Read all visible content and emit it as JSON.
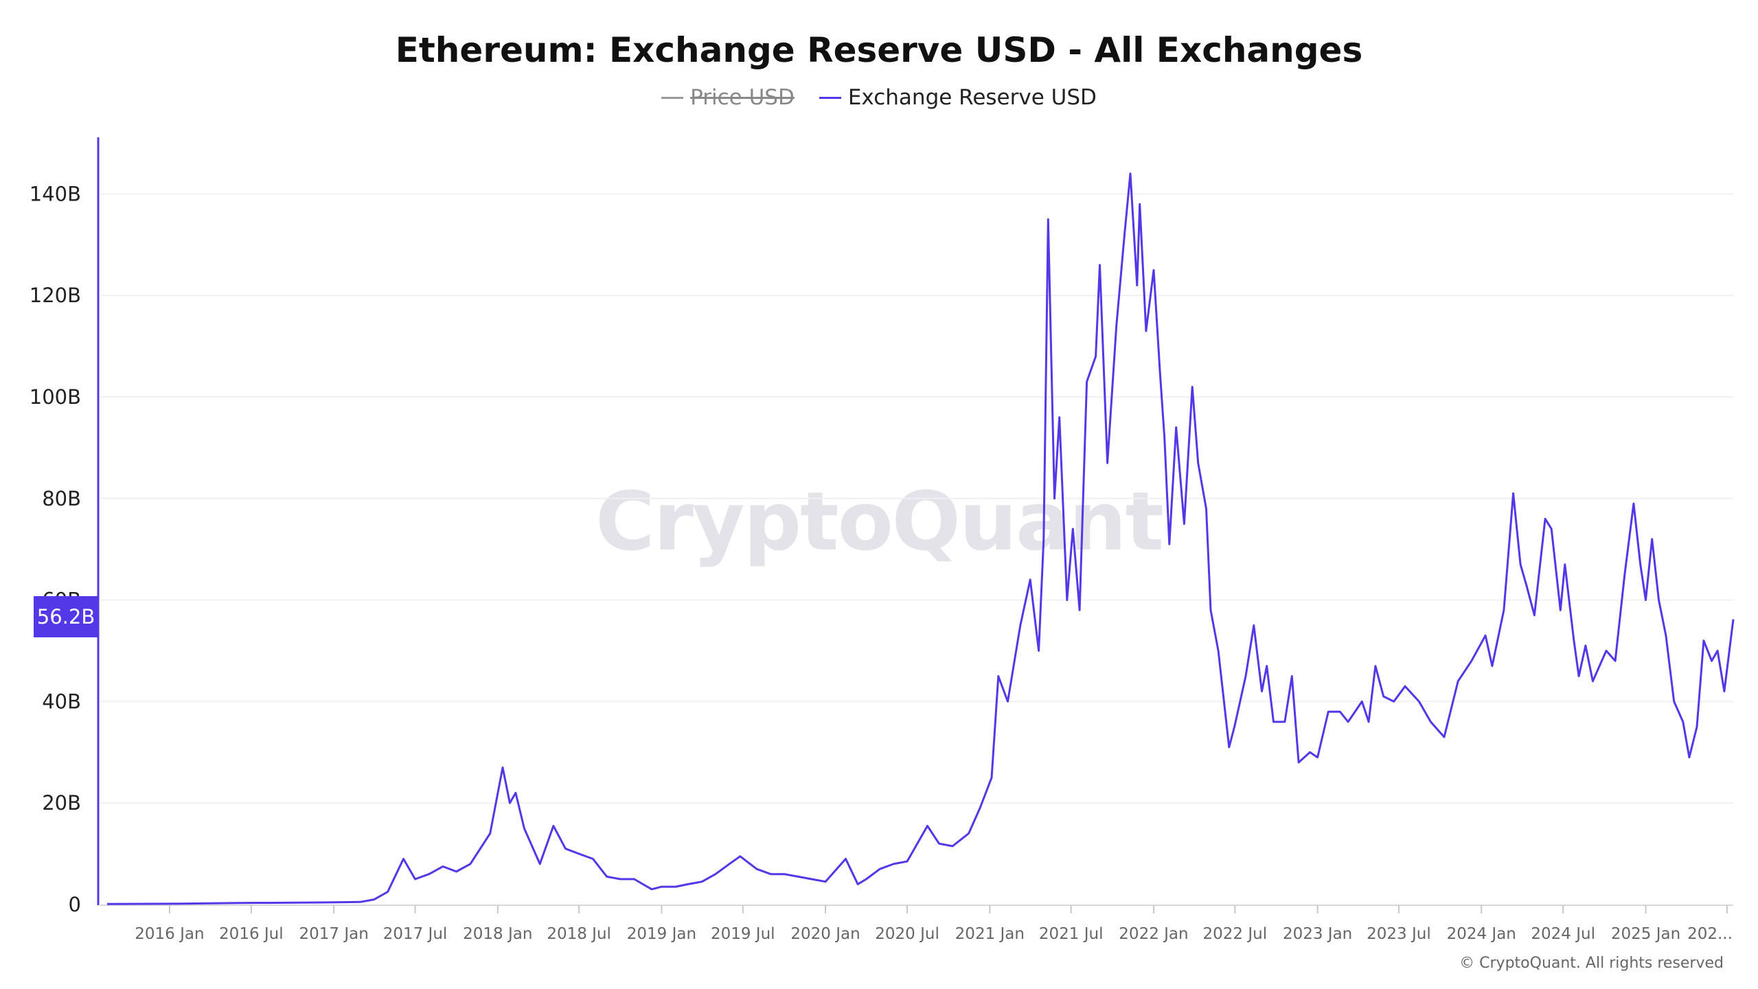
{
  "chart_data": {
    "type": "line",
    "title": "Ethereum: Exchange Reserve USD - All Exchanges",
    "legend": [
      {
        "name": "Price USD",
        "color": "#999999",
        "hidden": true
      },
      {
        "name": "Exchange Reserve USD",
        "color": "#5338e8",
        "hidden": false
      }
    ],
    "legend_placement": "top-center",
    "ylim": [
      0,
      150
    ],
    "y_unit": "B",
    "y_ticks": [
      "0",
      "20B",
      "40B",
      "60B",
      "80B",
      "100B",
      "120B",
      "140B"
    ],
    "x_ticks": [
      "2016 Jan",
      "2016 Jul",
      "2017 Jan",
      "2017 Jul",
      "2018 Jan",
      "2018 Jul",
      "2019 Jan",
      "2019 Jul",
      "2020 Jan",
      "2020 Jul",
      "2021 Jan",
      "2021 Jul",
      "2022 Jan",
      "2022 Jul",
      "2023 Jan",
      "2023 Jul",
      "2024 Jan",
      "2024 Jul",
      "2025 Jan",
      "202..."
    ],
    "x_tick_dates": [
      "2016-01-01",
      "2016-07-01",
      "2017-01-01",
      "2017-07-01",
      "2018-01-01",
      "2018-07-01",
      "2019-01-01",
      "2019-07-01",
      "2020-01-01",
      "2020-07-01",
      "2021-01-01",
      "2021-07-01",
      "2022-01-01",
      "2022-07-01",
      "2023-01-01",
      "2023-07-01",
      "2024-01-01",
      "2024-07-01",
      "2025-01-01",
      "2025-07-01"
    ],
    "grid": true,
    "last_value_label": "56.2B",
    "series": [
      {
        "name": "Exchange Reserve USD",
        "unit": "B USD",
        "points": [
          [
            "2015-08-15",
            0.1
          ],
          [
            "2016-01-01",
            0.15
          ],
          [
            "2016-06-01",
            0.3
          ],
          [
            "2016-12-01",
            0.4
          ],
          [
            "2017-03-01",
            0.5
          ],
          [
            "2017-04-01",
            1
          ],
          [
            "2017-05-01",
            2.5
          ],
          [
            "2017-06-05",
            9
          ],
          [
            "2017-07-01",
            5
          ],
          [
            "2017-08-01",
            6
          ],
          [
            "2017-09-01",
            7.5
          ],
          [
            "2017-10-01",
            6.5
          ],
          [
            "2017-11-01",
            8
          ],
          [
            "2017-12-15",
            14
          ],
          [
            "2018-01-12",
            27
          ],
          [
            "2018-01-28",
            20
          ],
          [
            "2018-02-10",
            22
          ],
          [
            "2018-03-01",
            15
          ],
          [
            "2018-04-05",
            8
          ],
          [
            "2018-05-05",
            15.5
          ],
          [
            "2018-06-01",
            11
          ],
          [
            "2018-07-01",
            10
          ],
          [
            "2018-08-01",
            9
          ],
          [
            "2018-09-01",
            5.5
          ],
          [
            "2018-10-01",
            5
          ],
          [
            "2018-11-01",
            5
          ],
          [
            "2018-12-10",
            3
          ],
          [
            "2019-01-01",
            3.5
          ],
          [
            "2019-02-01",
            3.5
          ],
          [
            "2019-03-01",
            4
          ],
          [
            "2019-04-01",
            4.5
          ],
          [
            "2019-05-01",
            6
          ],
          [
            "2019-06-01",
            8
          ],
          [
            "2019-06-25",
            9.5
          ],
          [
            "2019-08-01",
            7
          ],
          [
            "2019-09-01",
            6
          ],
          [
            "2019-10-01",
            6
          ],
          [
            "2019-11-01",
            5.5
          ],
          [
            "2019-12-01",
            5
          ],
          [
            "2020-01-01",
            4.5
          ],
          [
            "2020-02-15",
            9
          ],
          [
            "2020-03-13",
            4
          ],
          [
            "2020-04-01",
            5
          ],
          [
            "2020-05-01",
            7
          ],
          [
            "2020-06-01",
            8
          ],
          [
            "2020-07-01",
            8.5
          ],
          [
            "2020-08-15",
            15.5
          ],
          [
            "2020-09-10",
            12
          ],
          [
            "2020-10-10",
            11.5
          ],
          [
            "2020-11-15",
            14
          ],
          [
            "2020-12-10",
            19
          ],
          [
            "2021-01-05",
            25
          ],
          [
            "2021-01-20",
            45
          ],
          [
            "2021-02-10",
            40
          ],
          [
            "2021-03-10",
            55
          ],
          [
            "2021-04-01",
            64
          ],
          [
            "2021-04-20",
            50
          ],
          [
            "2021-05-01",
            72
          ],
          [
            "2021-05-11",
            135
          ],
          [
            "2021-05-25",
            80
          ],
          [
            "2021-06-05",
            96
          ],
          [
            "2021-06-22",
            60
          ],
          [
            "2021-07-05",
            74
          ],
          [
            "2021-07-20",
            58
          ],
          [
            "2021-08-05",
            103
          ],
          [
            "2021-08-25",
            108
          ],
          [
            "2021-09-03",
            126
          ],
          [
            "2021-09-20",
            87
          ],
          [
            "2021-10-10",
            114
          ],
          [
            "2021-10-28",
            132
          ],
          [
            "2021-11-10",
            144
          ],
          [
            "2021-11-25",
            122
          ],
          [
            "2021-12-01",
            138
          ],
          [
            "2021-12-15",
            113
          ],
          [
            "2022-01-01",
            125
          ],
          [
            "2022-01-15",
            105
          ],
          [
            "2022-01-25",
            92
          ],
          [
            "2022-02-05",
            71
          ],
          [
            "2022-02-20",
            94
          ],
          [
            "2022-03-10",
            75
          ],
          [
            "2022-03-28",
            102
          ],
          [
            "2022-04-10",
            87
          ],
          [
            "2022-04-28",
            78
          ],
          [
            "2022-05-08",
            58
          ],
          [
            "2022-05-25",
            50
          ],
          [
            "2022-06-18",
            31
          ],
          [
            "2022-06-30",
            35
          ],
          [
            "2022-07-25",
            45
          ],
          [
            "2022-08-12",
            55
          ],
          [
            "2022-08-30",
            42
          ],
          [
            "2022-09-10",
            47
          ],
          [
            "2022-09-25",
            36
          ],
          [
            "2022-10-20",
            36
          ],
          [
            "2022-11-05",
            45
          ],
          [
            "2022-11-20",
            28
          ],
          [
            "2022-12-15",
            30
          ],
          [
            "2023-01-01",
            29
          ],
          [
            "2023-01-25",
            38
          ],
          [
            "2023-02-20",
            38
          ],
          [
            "2023-03-10",
            36
          ],
          [
            "2023-04-10",
            40
          ],
          [
            "2023-04-25",
            36
          ],
          [
            "2023-05-10",
            47
          ],
          [
            "2023-05-28",
            41
          ],
          [
            "2023-06-20",
            40
          ],
          [
            "2023-07-15",
            43
          ],
          [
            "2023-08-15",
            40
          ],
          [
            "2023-09-10",
            36
          ],
          [
            "2023-10-10",
            33
          ],
          [
            "2023-11-10",
            44
          ],
          [
            "2023-12-10",
            48
          ],
          [
            "2024-01-10",
            53
          ],
          [
            "2024-01-25",
            47
          ],
          [
            "2024-02-20",
            58
          ],
          [
            "2024-03-12",
            81
          ],
          [
            "2024-03-28",
            67
          ],
          [
            "2024-04-10",
            63
          ],
          [
            "2024-04-28",
            57
          ],
          [
            "2024-05-22",
            76
          ],
          [
            "2024-06-05",
            74
          ],
          [
            "2024-06-25",
            58
          ],
          [
            "2024-07-05",
            67
          ],
          [
            "2024-07-25",
            52
          ],
          [
            "2024-08-05",
            45
          ],
          [
            "2024-08-20",
            51
          ],
          [
            "2024-09-05",
            44
          ],
          [
            "2024-10-05",
            50
          ],
          [
            "2024-10-25",
            48
          ],
          [
            "2024-11-15",
            65
          ],
          [
            "2024-12-05",
            79
          ],
          [
            "2024-12-20",
            67
          ],
          [
            "2025-01-01",
            60
          ],
          [
            "2025-01-15",
            72
          ],
          [
            "2025-01-30",
            60
          ],
          [
            "2025-02-15",
            53
          ],
          [
            "2025-03-05",
            40
          ],
          [
            "2025-03-25",
            36
          ],
          [
            "2025-04-08",
            29
          ],
          [
            "2025-04-25",
            35
          ],
          [
            "2025-05-10",
            52
          ],
          [
            "2025-05-28",
            48
          ],
          [
            "2025-06-10",
            50
          ],
          [
            "2025-06-25",
            42
          ],
          [
            "2025-07-15",
            56.2
          ]
        ]
      }
    ]
  },
  "watermark": "CryptoQuant",
  "copyright": "© CryptoQuant. All rights reserved"
}
